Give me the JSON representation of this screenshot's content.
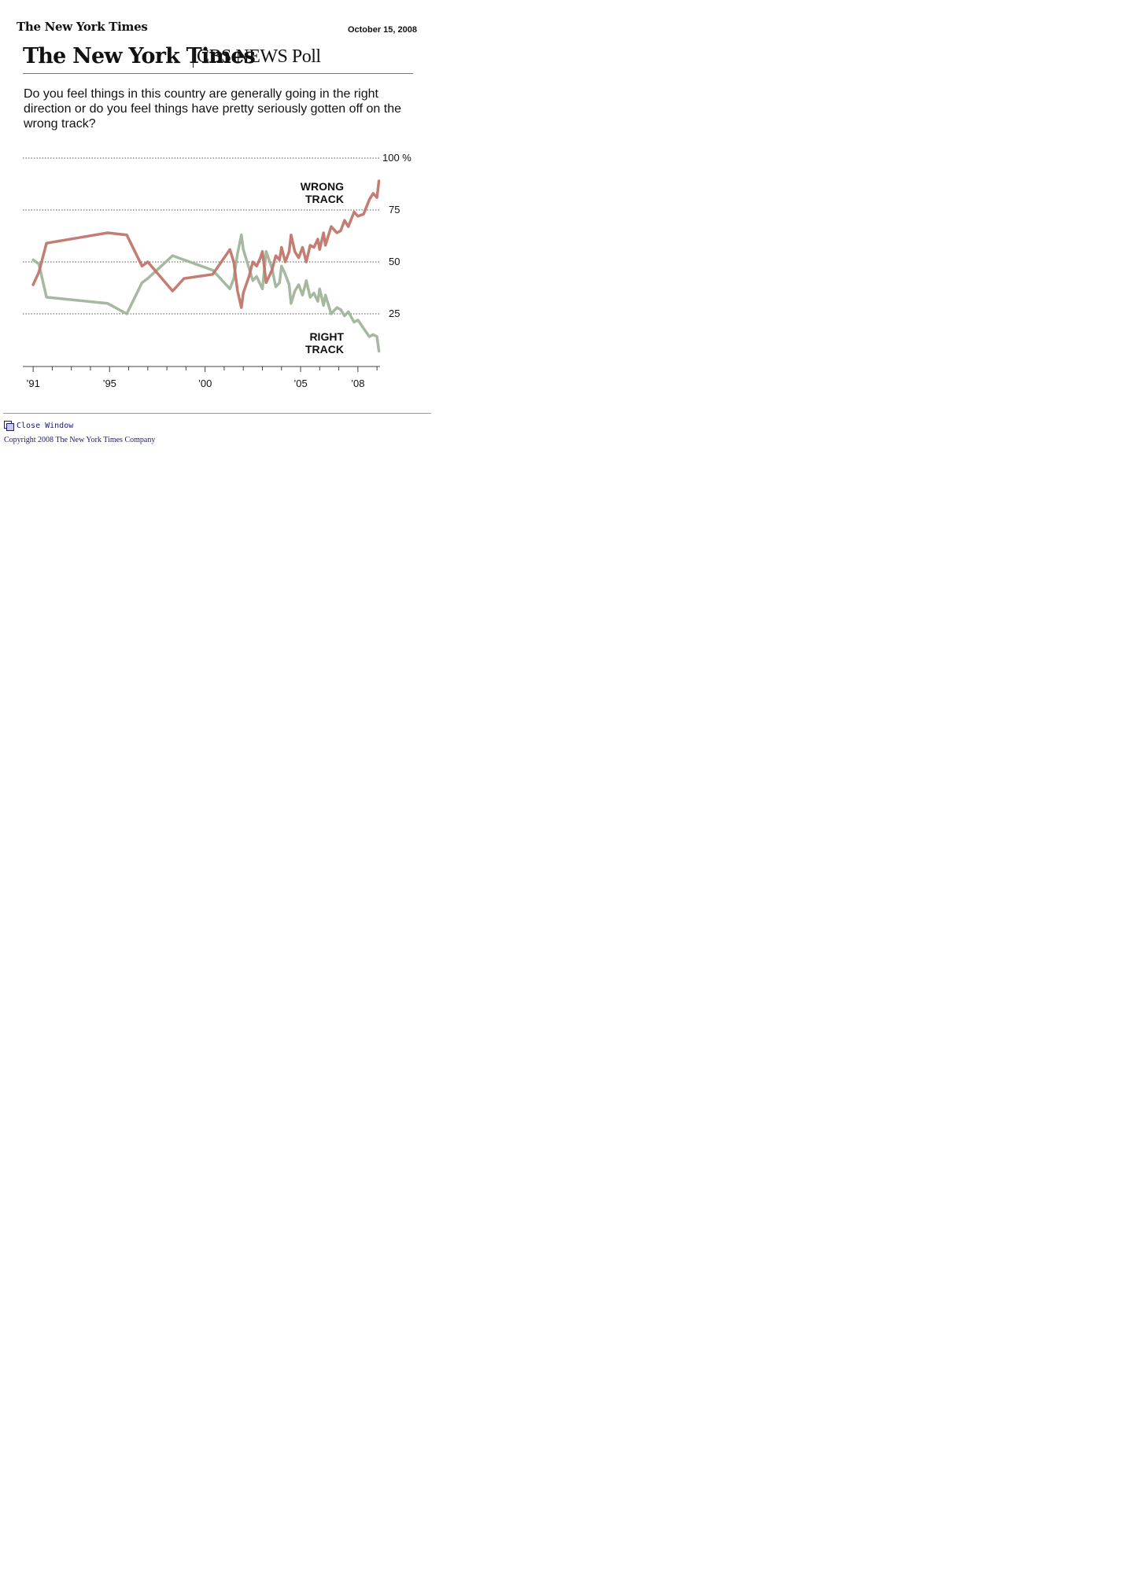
{
  "header": {
    "logo_text": "The New York Times",
    "date": "October 15, 2008"
  },
  "masthead": {
    "nyt": "The New York Times",
    "poll": "CBS NEWS Poll"
  },
  "question": "Do you feel things in this country are generally going in the right direction or do you feel things have pretty seriously gotten off on the wrong track?",
  "chart_data": {
    "type": "line",
    "title": "",
    "xlabel": "",
    "ylabel": "",
    "xlim": [
      1990.5,
      2009.2
    ],
    "ylim": [
      0,
      100
    ],
    "x_ticks": [
      1991,
      1995,
      2000,
      2005,
      2008
    ],
    "x_tick_labels": [
      "’91",
      "’95",
      "’00",
      "’05",
      "’08"
    ],
    "y_ticks": [
      100,
      75,
      50,
      25
    ],
    "y_tick_labels": [
      "100 %",
      "75",
      "50",
      "25"
    ],
    "grid": "dotted horizontal",
    "colors": {
      "wrong": "#c0766a",
      "right": "#a2b49c"
    },
    "series": [
      {
        "name": "WRONG TRACK",
        "points": [
          [
            1991.0,
            39
          ],
          [
            1991.3,
            45
          ],
          [
            1991.7,
            59
          ],
          [
            1994.9,
            64
          ],
          [
            1995.9,
            63
          ],
          [
            1996.7,
            48
          ],
          [
            1997.0,
            50
          ],
          [
            1998.3,
            36
          ],
          [
            1998.9,
            42
          ],
          [
            2000.4,
            44
          ],
          [
            2001.3,
            56
          ],
          [
            2001.5,
            50
          ],
          [
            2001.7,
            36
          ],
          [
            2001.9,
            28
          ],
          [
            2002.0,
            35
          ],
          [
            2002.3,
            43
          ],
          [
            2002.5,
            50
          ],
          [
            2002.7,
            48
          ],
          [
            2002.9,
            52
          ],
          [
            2003.0,
            55
          ],
          [
            2003.2,
            40
          ],
          [
            2003.5,
            46
          ],
          [
            2003.7,
            53
          ],
          [
            2003.9,
            51
          ],
          [
            2004.0,
            57
          ],
          [
            2004.2,
            50
          ],
          [
            2004.4,
            55
          ],
          [
            2004.5,
            63
          ],
          [
            2004.7,
            55
          ],
          [
            2004.9,
            52
          ],
          [
            2005.1,
            57
          ],
          [
            2005.3,
            50
          ],
          [
            2005.5,
            58
          ],
          [
            2005.7,
            57
          ],
          [
            2005.9,
            61
          ],
          [
            2006.0,
            56
          ],
          [
            2006.2,
            64
          ],
          [
            2006.3,
            58
          ],
          [
            2006.6,
            67
          ],
          [
            2006.9,
            64
          ],
          [
            2007.1,
            65
          ],
          [
            2007.3,
            70
          ],
          [
            2007.5,
            67
          ],
          [
            2007.8,
            74
          ],
          [
            2008.0,
            72
          ],
          [
            2008.3,
            73
          ],
          [
            2008.6,
            80
          ],
          [
            2008.8,
            83
          ],
          [
            2009.0,
            81
          ],
          [
            2009.1,
            89
          ]
        ]
      },
      {
        "name": "RIGHT TRACK",
        "points": [
          [
            1991.0,
            51
          ],
          [
            1991.3,
            49
          ],
          [
            1991.7,
            33
          ],
          [
            1994.9,
            30
          ],
          [
            1995.9,
            25
          ],
          [
            1996.7,
            40
          ],
          [
            1997.0,
            42
          ],
          [
            1998.3,
            53
          ],
          [
            1998.9,
            51
          ],
          [
            2000.4,
            46
          ],
          [
            2001.3,
            37
          ],
          [
            2001.5,
            42
          ],
          [
            2001.7,
            54
          ],
          [
            2001.9,
            63
          ],
          [
            2002.0,
            56
          ],
          [
            2002.3,
            47
          ],
          [
            2002.5,
            41
          ],
          [
            2002.7,
            43
          ],
          [
            2002.9,
            39
          ],
          [
            2003.0,
            37
          ],
          [
            2003.2,
            55
          ],
          [
            2003.5,
            47
          ],
          [
            2003.7,
            38
          ],
          [
            2003.9,
            40
          ],
          [
            2004.0,
            48
          ],
          [
            2004.2,
            44
          ],
          [
            2004.4,
            39
          ],
          [
            2004.5,
            30
          ],
          [
            2004.7,
            36
          ],
          [
            2004.9,
            39
          ],
          [
            2005.1,
            34
          ],
          [
            2005.3,
            41
          ],
          [
            2005.5,
            33
          ],
          [
            2005.7,
            35
          ],
          [
            2005.9,
            31
          ],
          [
            2006.0,
            37
          ],
          [
            2006.2,
            29
          ],
          [
            2006.3,
            34
          ],
          [
            2006.6,
            25
          ],
          [
            2006.9,
            28
          ],
          [
            2007.1,
            27
          ],
          [
            2007.3,
            24
          ],
          [
            2007.5,
            26
          ],
          [
            2007.8,
            21
          ],
          [
            2008.0,
            22
          ],
          [
            2008.3,
            18
          ],
          [
            2008.6,
            14
          ],
          [
            2008.8,
            15
          ],
          [
            2009.0,
            14
          ],
          [
            2009.1,
            7
          ]
        ]
      }
    ]
  },
  "footer": {
    "close_label": "Close Window",
    "copyright": "Copyright 2008 The New York Times Company"
  }
}
